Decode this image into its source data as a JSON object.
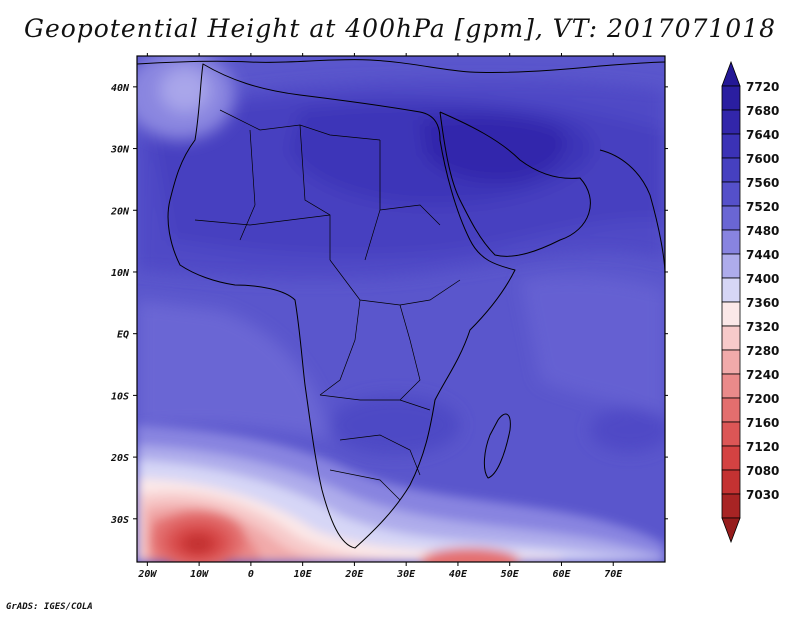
{
  "title": "Geopotential Height at 400hPa [gpm], VT: 2017071018",
  "credit": "GrADS: IGES/COLA",
  "map": {
    "lon_range": [
      -22,
      80
    ],
    "lat_range": [
      -37,
      45
    ],
    "lon_ticks": [
      {
        "value": -20,
        "label": "20W"
      },
      {
        "value": -10,
        "label": "10W"
      },
      {
        "value": 0,
        "label": "0"
      },
      {
        "value": 10,
        "label": "10E"
      },
      {
        "value": 20,
        "label": "20E"
      },
      {
        "value": 30,
        "label": "30E"
      },
      {
        "value": 40,
        "label": "40E"
      },
      {
        "value": 50,
        "label": "50E"
      },
      {
        "value": 60,
        "label": "60E"
      },
      {
        "value": 70,
        "label": "70E"
      }
    ],
    "lat_ticks": [
      {
        "value": 40,
        "label": "40N"
      },
      {
        "value": 30,
        "label": "30N"
      },
      {
        "value": 20,
        "label": "20N"
      },
      {
        "value": 10,
        "label": "10N"
      },
      {
        "value": 0,
        "label": "EQ"
      },
      {
        "value": -10,
        "label": "10S"
      },
      {
        "value": -20,
        "label": "20S"
      },
      {
        "value": -30,
        "label": "30S"
      }
    ]
  },
  "colorbar": {
    "levels": [
      {
        "label": "7720",
        "color": "#2a1ea0"
      },
      {
        "label": "7680",
        "color": "#3226aa"
      },
      {
        "label": "7640",
        "color": "#3b32b6"
      },
      {
        "label": "7600",
        "color": "#4640c0"
      },
      {
        "label": "7560",
        "color": "#5550ca"
      },
      {
        "label": "7520",
        "color": "#6a66d4"
      },
      {
        "label": "7480",
        "color": "#8884e0"
      },
      {
        "label": "7440",
        "color": "#aeaceb"
      },
      {
        "label": "7400",
        "color": "#d6d6f6"
      },
      {
        "label": "7360",
        "color": "#fbe8e8"
      },
      {
        "label": "7320",
        "color": "#f7caca"
      },
      {
        "label": "7280",
        "color": "#f1aaaa"
      },
      {
        "label": "7240",
        "color": "#ea8a8a"
      },
      {
        "label": "7200",
        "color": "#e36e6e"
      },
      {
        "label": "7160",
        "color": "#dc5656"
      },
      {
        "label": "7120",
        "color": "#d44242"
      },
      {
        "label": "7080",
        "color": "#c43232"
      },
      {
        "label": "7030",
        "color": "#a82424"
      }
    ],
    "top_color": "#241896",
    "bottom_color": "#961c1c"
  }
}
